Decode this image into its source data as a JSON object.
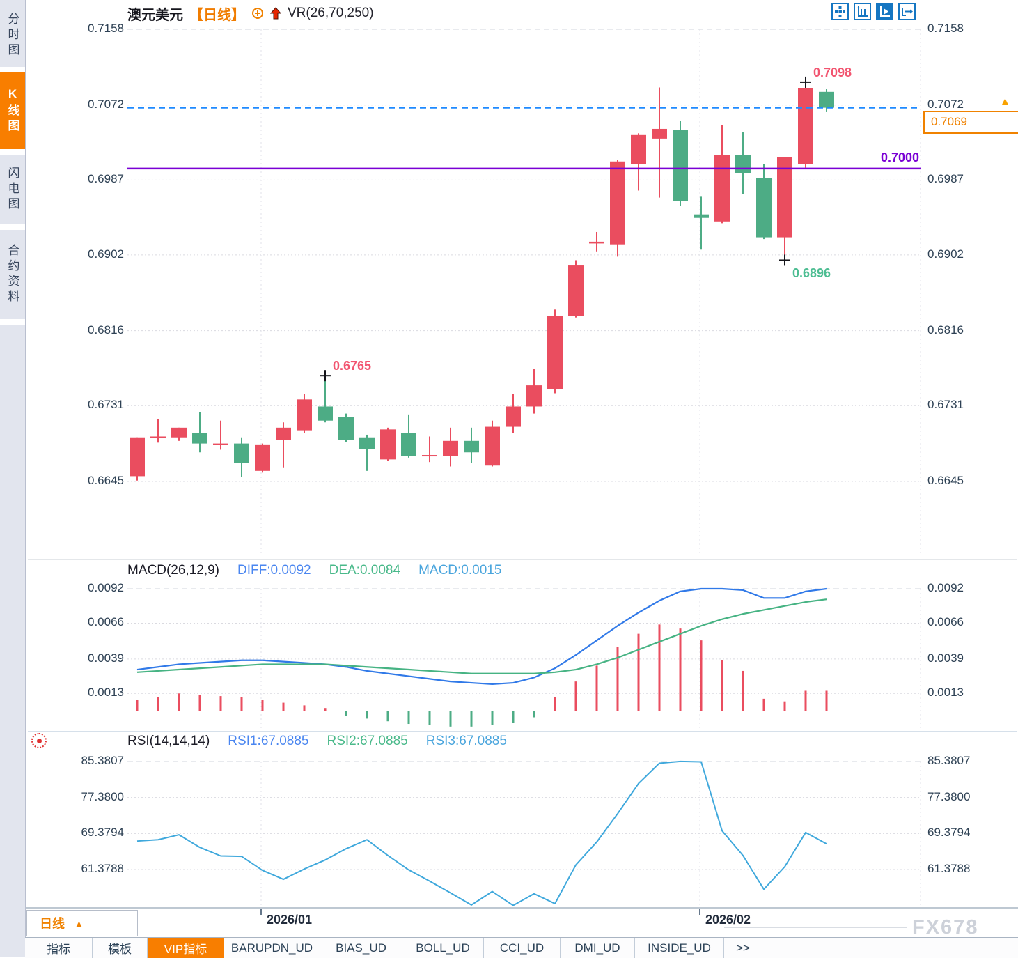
{
  "sidebar": {
    "tabs": [
      {
        "label": "分时图",
        "active": false
      },
      {
        "label": "K线图",
        "active": true
      },
      {
        "label": "闪电图",
        "active": false
      },
      {
        "label": "合约资料",
        "active": false
      }
    ]
  },
  "header": {
    "symbol": "澳元美元",
    "period_tag": "【日线】",
    "indicator": "VR(26,70,250)"
  },
  "toolbar": {
    "icons": [
      "pan-icon",
      "axis-range-icon",
      "axis-play-icon",
      "exit-right-icon"
    ],
    "accent_color": "#1576c2"
  },
  "price_axis": {
    "current_price": "0.7069"
  },
  "bottom": {
    "period_selector": "日线",
    "watermark": "FX678",
    "indicator_tabs": [
      "指标",
      "模板",
      "VIP指标",
      "BARUPDN_UD",
      "BIAS_UD",
      "BOLL_UD",
      "CCI_UD",
      "DMI_UD",
      "INSIDE_UD",
      ">>"
    ],
    "active_tab": "VIP指标"
  },
  "chart_data": {
    "type": "candlestick",
    "title": "澳元美元 日线",
    "up_color": "#ea4d5f",
    "down_color": "#4dac85",
    "main": {
      "y_ticks": [
        0.7158,
        0.7072,
        0.6987,
        0.6902,
        0.6816,
        0.6731,
        0.6645
      ],
      "candles_ohlc": [
        [
          0.6651,
          0.6695,
          0.6646,
          0.6695
        ],
        [
          0.6694,
          0.6716,
          0.6689,
          0.6696
        ],
        [
          0.6695,
          0.6706,
          0.6691,
          0.6706
        ],
        [
          0.67,
          0.6724,
          0.6678,
          0.6688
        ],
        [
          0.6687,
          0.6714,
          0.6681,
          0.6688
        ],
        [
          0.6688,
          0.6695,
          0.665,
          0.6666
        ],
        [
          0.6657,
          0.6688,
          0.6655,
          0.6687
        ],
        [
          0.6692,
          0.6712,
          0.6661,
          0.6706
        ],
        [
          0.6703,
          0.6744,
          0.67,
          0.6738
        ],
        [
          0.673,
          0.6765,
          0.6712,
          0.6714
        ],
        [
          0.6718,
          0.6722,
          0.669,
          0.6692
        ],
        [
          0.6695,
          0.6698,
          0.6657,
          0.6682
        ],
        [
          0.667,
          0.6706,
          0.6668,
          0.6704
        ],
        [
          0.67,
          0.6721,
          0.6672,
          0.6674
        ],
        [
          0.6674,
          0.6696,
          0.6667,
          0.6675
        ],
        [
          0.6674,
          0.6706,
          0.6662,
          0.6691
        ],
        [
          0.6691,
          0.6706,
          0.6666,
          0.6678
        ],
        [
          0.6663,
          0.6714,
          0.6662,
          0.6707
        ],
        [
          0.6707,
          0.6744,
          0.67,
          0.673
        ],
        [
          0.673,
          0.6773,
          0.6722,
          0.6754
        ],
        [
          0.675,
          0.684,
          0.6745,
          0.6833
        ],
        [
          0.6833,
          0.6896,
          0.6831,
          0.689
        ],
        [
          0.6915,
          0.6928,
          0.6906,
          0.6917
        ],
        [
          0.6914,
          0.701,
          0.69,
          0.7008
        ],
        [
          0.7005,
          0.704,
          0.6975,
          0.7038
        ],
        [
          0.7034,
          0.7092,
          0.6967,
          0.7045
        ],
        [
          0.7044,
          0.7054,
          0.6958,
          0.6963
        ],
        [
          0.6948,
          0.6968,
          0.6908,
          0.6944
        ],
        [
          0.694,
          0.7049,
          0.6938,
          0.7015
        ],
        [
          0.7015,
          0.7041,
          0.6971,
          0.6995
        ],
        [
          0.6989,
          0.7005,
          0.692,
          0.6922
        ],
        [
          0.6922,
          0.7013,
          0.6896,
          0.7013
        ],
        [
          0.7005,
          0.7098,
          0.7001,
          0.7091
        ],
        [
          0.7087,
          0.709,
          0.7064,
          0.7069
        ]
      ],
      "current_line": {
        "price": 0.7069,
        "color": "#1e8aff",
        "style": "dashed"
      },
      "support_line": {
        "price": 0.7,
        "label": "0.7000",
        "color": "#7a00d4"
      },
      "annotations": [
        {
          "text": "0.6765",
          "index": 9,
          "price": 0.6765,
          "side": "above",
          "color": "#f25570"
        },
        {
          "text": "0.6896",
          "index": 31,
          "price": 0.6896,
          "side": "below",
          "color": "#4dbd92"
        },
        {
          "text": "0.7098",
          "index": 32,
          "price": 0.7098,
          "side": "above",
          "color": "#f25570"
        }
      ]
    },
    "macd": {
      "label": "MACD(26,12,9)",
      "readouts": [
        {
          "text": "DIFF:0.0092",
          "color": "#4a86f0"
        },
        {
          "text": "DEA:0.0084",
          "color": "#49b98a"
        },
        {
          "text": "MACD:0.0015",
          "color": "#4aa5dd"
        }
      ],
      "y_ticks": [
        0.0092,
        0.0066,
        0.0039,
        0.0013
      ],
      "diff": [
        0.0031,
        0.0033,
        0.0035,
        0.0036,
        0.0037,
        0.0038,
        0.0038,
        0.0037,
        0.0036,
        0.0035,
        0.0033,
        0.003,
        0.0028,
        0.0026,
        0.0024,
        0.0022,
        0.0021,
        0.002,
        0.0021,
        0.0025,
        0.0032,
        0.0042,
        0.0053,
        0.0064,
        0.0074,
        0.0083,
        0.009,
        0.0092,
        0.0092,
        0.0091,
        0.0085,
        0.0085,
        0.009,
        0.0092
      ],
      "dea": [
        0.0029,
        0.003,
        0.0031,
        0.0032,
        0.0033,
        0.0034,
        0.0035,
        0.0035,
        0.0035,
        0.0035,
        0.0034,
        0.0033,
        0.0032,
        0.0031,
        0.003,
        0.0029,
        0.0028,
        0.0028,
        0.0028,
        0.0028,
        0.0029,
        0.0031,
        0.0035,
        0.004,
        0.0046,
        0.0052,
        0.0058,
        0.0064,
        0.0069,
        0.0073,
        0.0076,
        0.0079,
        0.0082,
        0.0084
      ],
      "hist": [
        0.0008,
        0.001,
        0.0013,
        0.0012,
        0.0011,
        0.001,
        0.0008,
        0.0006,
        0.0004,
        0.0002,
        -0.0004,
        -0.0006,
        -0.0008,
        -0.001,
        -0.0011,
        -0.0012,
        -0.0012,
        -0.0011,
        -0.0009,
        -0.0005,
        0.001,
        0.0022,
        0.0034,
        0.0048,
        0.0058,
        0.0065,
        0.0062,
        0.0053,
        0.0038,
        0.003,
        0.0009,
        0.0007,
        0.0015,
        0.0015
      ]
    },
    "rsi": {
      "label": "RSI(14,14,14)",
      "readouts": [
        {
          "text": "RSI1:67.0885",
          "color": "#4a86f0"
        },
        {
          "text": "RSI2:67.0885",
          "color": "#49b98a"
        },
        {
          "text": "RSI3:67.0885",
          "color": "#4aa5dd"
        }
      ],
      "y_ticks": [
        85.3807,
        77.38,
        69.3794,
        61.3788
      ],
      "values": [
        67.7,
        68.0,
        69.1,
        66.3,
        64.4,
        64.3,
        61.2,
        59.2,
        61.5,
        63.5,
        66.0,
        68.0,
        64.5,
        61.3,
        58.8,
        56.2,
        53.5,
        56.5,
        53.4,
        56.0,
        53.8,
        62.4,
        67.5,
        73.8,
        80.5,
        85.0,
        85.4,
        85.3,
        70.0,
        64.5,
        57.0,
        62.0,
        69.6,
        67.0885
      ]
    },
    "x_axis": {
      "labels": [
        {
          "text": "2026/01",
          "index": 6
        },
        {
          "text": "2026/02",
          "index": 27
        }
      ]
    }
  }
}
